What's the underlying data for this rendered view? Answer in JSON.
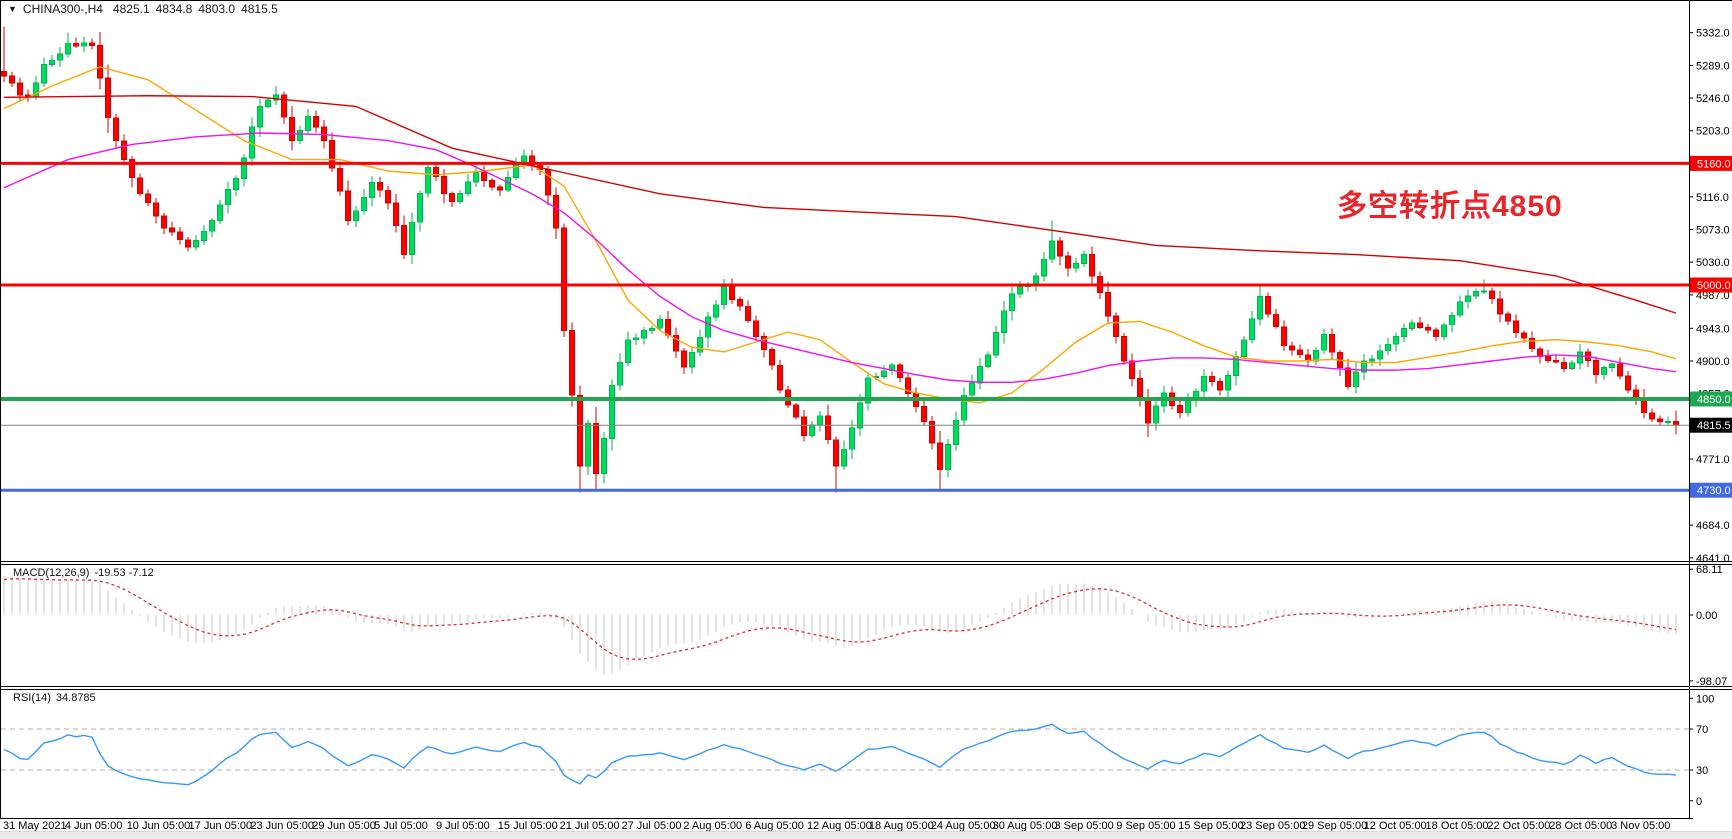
{
  "title": {
    "selector_icon": "▼",
    "symbol": "CHINA300-,H4",
    "open": "4825.1",
    "high": "4834.8",
    "low": "4803.0",
    "close": "4815.5"
  },
  "annotation": {
    "text": "多空转折点4850",
    "color": "#e8262a"
  },
  "chart_data": {
    "type": "candlestick",
    "timeframe": "H4",
    "symbol": "CHINA300-",
    "last_bar": {
      "open": 4825.1,
      "high": 4834.8,
      "low": 4803.0,
      "close": 4815.5
    },
    "price_axis": {
      "range_top": 5375,
      "range_bottom": 4635,
      "ticks": [
        5332.0,
        5289.0,
        5246.0,
        5203.0,
        5160.0,
        5116.0,
        5073.0,
        5030.0,
        4987.0,
        4943.0,
        4900.0,
        4857.0,
        4814.0,
        4771.0,
        4727.0,
        4684.0,
        4641.0
      ]
    },
    "h_lines": [
      {
        "price": 5160.0,
        "label": "5160.0",
        "color": "#ff0000",
        "width": 3,
        "badge_bg": "#ff0000",
        "badge_fg": "#ffffff"
      },
      {
        "price": 5000.0,
        "label": "5000.0",
        "color": "#ff0000",
        "width": 3,
        "badge_bg": "#ff0000",
        "badge_fg": "#ffffff"
      },
      {
        "price": 4850.0,
        "label": "4850.0",
        "color": "#1ea750",
        "width": 4,
        "badge_bg": "#1ea750",
        "badge_fg": "#ffffff"
      },
      {
        "price": 4730.0,
        "label": "4730.0",
        "color": "#4169e1",
        "width": 3,
        "badge_bg": "#4169e1",
        "badge_fg": "#ffffff"
      },
      {
        "price": 4815.5,
        "label": "4815.5",
        "color": "#808080",
        "width": 1,
        "badge_bg": "#000000",
        "badge_fg": "#ffffff"
      }
    ],
    "candles": {
      "count": 210,
      "up_fill": "#00dc5f",
      "up_stroke": "#00b44c",
      "down_fill": "#ff0000",
      "down_stroke": "#d40000",
      "close_waypoints": [
        [
          0,
          5275
        ],
        [
          2,
          5250
        ],
        [
          3,
          5248
        ],
        [
          5,
          5290
        ],
        [
          8,
          5318
        ],
        [
          11,
          5315
        ],
        [
          13,
          5220
        ],
        [
          15,
          5165
        ],
        [
          17,
          5120
        ],
        [
          20,
          5075
        ],
        [
          23,
          5050
        ],
        [
          26,
          5085
        ],
        [
          29,
          5140
        ],
        [
          32,
          5235
        ],
        [
          34,
          5250
        ],
        [
          36,
          5190
        ],
        [
          38,
          5222
        ],
        [
          40,
          5190
        ],
        [
          43,
          5085
        ],
        [
          46,
          5135
        ],
        [
          48,
          5108
        ],
        [
          50,
          5040
        ],
        [
          53,
          5155
        ],
        [
          56,
          5110
        ],
        [
          59,
          5148
        ],
        [
          62,
          5125
        ],
        [
          65,
          5170
        ],
        [
          67,
          5152
        ],
        [
          69,
          5075
        ],
        [
          70,
          4940
        ],
        [
          71,
          4855
        ],
        [
          72,
          4762
        ],
        [
          73,
          4818
        ],
        [
          74,
          4752
        ],
        [
          75,
          4798
        ],
        [
          76,
          4868
        ],
        [
          78,
          4928
        ],
        [
          80,
          4940
        ],
        [
          82,
          4955
        ],
        [
          85,
          4892
        ],
        [
          88,
          4958
        ],
        [
          90,
          4998
        ],
        [
          92,
          4972
        ],
        [
          95,
          4915
        ],
        [
          98,
          4842
        ],
        [
          100,
          4802
        ],
        [
          102,
          4828
        ],
        [
          104,
          4762
        ],
        [
          106,
          4812
        ],
        [
          108,
          4878
        ],
        [
          111,
          4895
        ],
        [
          114,
          4840
        ],
        [
          116,
          4792
        ],
        [
          117,
          4757
        ],
        [
          120,
          4855
        ],
        [
          123,
          4908
        ],
        [
          126,
          4988
        ],
        [
          129,
          5012
        ],
        [
          131,
          5058
        ],
        [
          133,
          5022
        ],
        [
          135,
          5040
        ],
        [
          137,
          4990
        ],
        [
          140,
          4900
        ],
        [
          142,
          4848
        ],
        [
          143,
          4818
        ],
        [
          145,
          4858
        ],
        [
          147,
          4832
        ],
        [
          150,
          4880
        ],
        [
          152,
          4862
        ],
        [
          155,
          4928
        ],
        [
          157,
          4985
        ],
        [
          160,
          4920
        ],
        [
          163,
          4900
        ],
        [
          165,
          4935
        ],
        [
          168,
          4866
        ],
        [
          170,
          4900
        ],
        [
          173,
          4922
        ],
        [
          176,
          4950
        ],
        [
          179,
          4932
        ],
        [
          182,
          4978
        ],
        [
          185,
          4992
        ],
        [
          187,
          4962
        ],
        [
          190,
          4930
        ],
        [
          192,
          4906
        ],
        [
          195,
          4890
        ],
        [
          197,
          4912
        ],
        [
          199,
          4882
        ],
        [
          201,
          4896
        ],
        [
          203,
          4862
        ],
        [
          205,
          4832
        ],
        [
          207,
          4820
        ],
        [
          209,
          4815.5
        ]
      ],
      "high_overrides": {
        "0": 5340,
        "8": 5332,
        "34": 5262,
        "90": 5008,
        "131": 5085,
        "157": 5000,
        "185": 5007,
        "209": 4834.8
      },
      "low_overrides": {
        "72": 4727,
        "74": 4728,
        "104": 4727,
        "117": 4730,
        "143": 4800,
        "209": 4803
      },
      "noise": {
        "seed": 11,
        "close_amp": 5,
        "wick_amp": 6
      }
    },
    "moving_averages": [
      {
        "name": "ma-orange",
        "color": "#ffa500",
        "points": [
          [
            0,
            5232
          ],
          [
            6,
            5262
          ],
          [
            12,
            5287
          ],
          [
            18,
            5270
          ],
          [
            24,
            5230
          ],
          [
            30,
            5190
          ],
          [
            36,
            5165
          ],
          [
            42,
            5165
          ],
          [
            48,
            5150
          ],
          [
            54,
            5145
          ],
          [
            60,
            5150
          ],
          [
            66,
            5158
          ],
          [
            70,
            5130
          ],
          [
            74,
            5058
          ],
          [
            78,
            4980
          ],
          [
            82,
            4940
          ],
          [
            86,
            4918
          ],
          [
            90,
            4912
          ],
          [
            94,
            4925
          ],
          [
            98,
            4938
          ],
          [
            102,
            4928
          ],
          [
            106,
            4898
          ],
          [
            110,
            4870
          ],
          [
            114,
            4858
          ],
          [
            118,
            4850
          ],
          [
            122,
            4845
          ],
          [
            126,
            4858
          ],
          [
            130,
            4890
          ],
          [
            134,
            4925
          ],
          [
            138,
            4950
          ],
          [
            142,
            4952
          ],
          [
            146,
            4938
          ],
          [
            150,
            4920
          ],
          [
            154,
            4905
          ],
          [
            158,
            4900
          ],
          [
            162,
            4900
          ],
          [
            166,
            4902
          ],
          [
            170,
            4898
          ],
          [
            174,
            4898
          ],
          [
            178,
            4905
          ],
          [
            182,
            4912
          ],
          [
            186,
            4920
          ],
          [
            190,
            4926
          ],
          [
            194,
            4928
          ],
          [
            198,
            4925
          ],
          [
            202,
            4920
          ],
          [
            206,
            4912
          ],
          [
            209,
            4903
          ]
        ]
      },
      {
        "name": "ma-magenta",
        "color": "#f012f0",
        "points": [
          [
            0,
            5128
          ],
          [
            8,
            5165
          ],
          [
            16,
            5185
          ],
          [
            24,
            5195
          ],
          [
            32,
            5200
          ],
          [
            40,
            5198
          ],
          [
            48,
            5190
          ],
          [
            54,
            5178
          ],
          [
            58,
            5160
          ],
          [
            62,
            5140
          ],
          [
            66,
            5120
          ],
          [
            70,
            5095
          ],
          [
            74,
            5060
          ],
          [
            78,
            5020
          ],
          [
            82,
            4985
          ],
          [
            86,
            4958
          ],
          [
            90,
            4940
          ],
          [
            94,
            4928
          ],
          [
            98,
            4918
          ],
          [
            102,
            4908
          ],
          [
            106,
            4898
          ],
          [
            110,
            4890
          ],
          [
            114,
            4882
          ],
          [
            118,
            4875
          ],
          [
            122,
            4872
          ],
          [
            126,
            4872
          ],
          [
            130,
            4876
          ],
          [
            134,
            4884
          ],
          [
            138,
            4894
          ],
          [
            142,
            4900
          ],
          [
            146,
            4904
          ],
          [
            150,
            4904
          ],
          [
            154,
            4902
          ],
          [
            158,
            4898
          ],
          [
            162,
            4894
          ],
          [
            166,
            4890
          ],
          [
            170,
            4888
          ],
          [
            174,
            4888
          ],
          [
            178,
            4890
          ],
          [
            182,
            4895
          ],
          [
            186,
            4900
          ],
          [
            190,
            4905
          ],
          [
            194,
            4908
          ],
          [
            198,
            4906
          ],
          [
            202,
            4898
          ],
          [
            206,
            4890
          ],
          [
            209,
            4886
          ]
        ]
      },
      {
        "name": "ma-darkred",
        "color": "#d60000",
        "points": [
          [
            0,
            5247
          ],
          [
            18,
            5249
          ],
          [
            31,
            5248
          ],
          [
            44,
            5235
          ],
          [
            56,
            5180
          ],
          [
            69,
            5150
          ],
          [
            82,
            5120
          ],
          [
            95,
            5102
          ],
          [
            107,
            5096
          ],
          [
            119,
            5090
          ],
          [
            131,
            5072
          ],
          [
            144,
            5052
          ],
          [
            157,
            5045
          ],
          [
            169,
            5040
          ],
          [
            182,
            5032
          ],
          [
            194,
            5012
          ],
          [
            204,
            4980
          ],
          [
            209,
            4963
          ]
        ]
      }
    ],
    "macd": {
      "label": "MACD(12,26,9)",
      "values": "-19.53 -7.12",
      "fast": 12,
      "slow": 26,
      "signal": 9,
      "axis_ticks": [
        {
          "v": 68.11,
          "label": "68.11"
        },
        {
          "v": 0,
          "label": "0.00"
        },
        {
          "v": -98.07,
          "label": "-98.07"
        }
      ],
      "range": [
        -105.7,
        74.4
      ],
      "hist_color": "#c8c8c8",
      "signal_color": "#e03030",
      "warmup": {
        "bars": 30,
        "drop": 300
      }
    },
    "rsi": {
      "label": "RSI(14)",
      "value": "34.8785",
      "period": 14,
      "axis_ticks": [
        {
          "v": 100,
          "label": "100"
        },
        {
          "v": 70,
          "label": "70"
        },
        {
          "v": 30,
          "label": "30"
        },
        {
          "v": 0,
          "label": "0"
        }
      ],
      "levels": [
        70,
        30
      ],
      "range": [
        -16.8,
        108
      ],
      "color": "#3399ff",
      "level_color": "#b0b0b0"
    },
    "date_axis": {
      "labels": [
        "31 May 2021",
        "4 Jun 05:00",
        "10 Jun 05:00",
        "17 Jun 05:00",
        "23 Jun 05:00",
        "29 Jun 05:00",
        "5 Jul 05:00",
        "9 Jul 05:00",
        "15 Jul 05:00",
        "21 Jul 05:00",
        "27 Jul 05:00",
        "2 Aug 05:00",
        "6 Aug 05:00",
        "12 Aug 05:00",
        "18 Aug 05:00",
        "24 Aug 05:00",
        "30 Aug 05:00",
        "3 Sep 05:00",
        "9 Sep 05:00",
        "15 Sep 05:00",
        "23 Sep 05:00",
        "29 Sep 05:00",
        "12 Oct 05:00",
        "18 Oct 05:00",
        "22 Oct 05:00",
        "28 Oct 05:00",
        "3 Nov 05:00"
      ]
    }
  }
}
